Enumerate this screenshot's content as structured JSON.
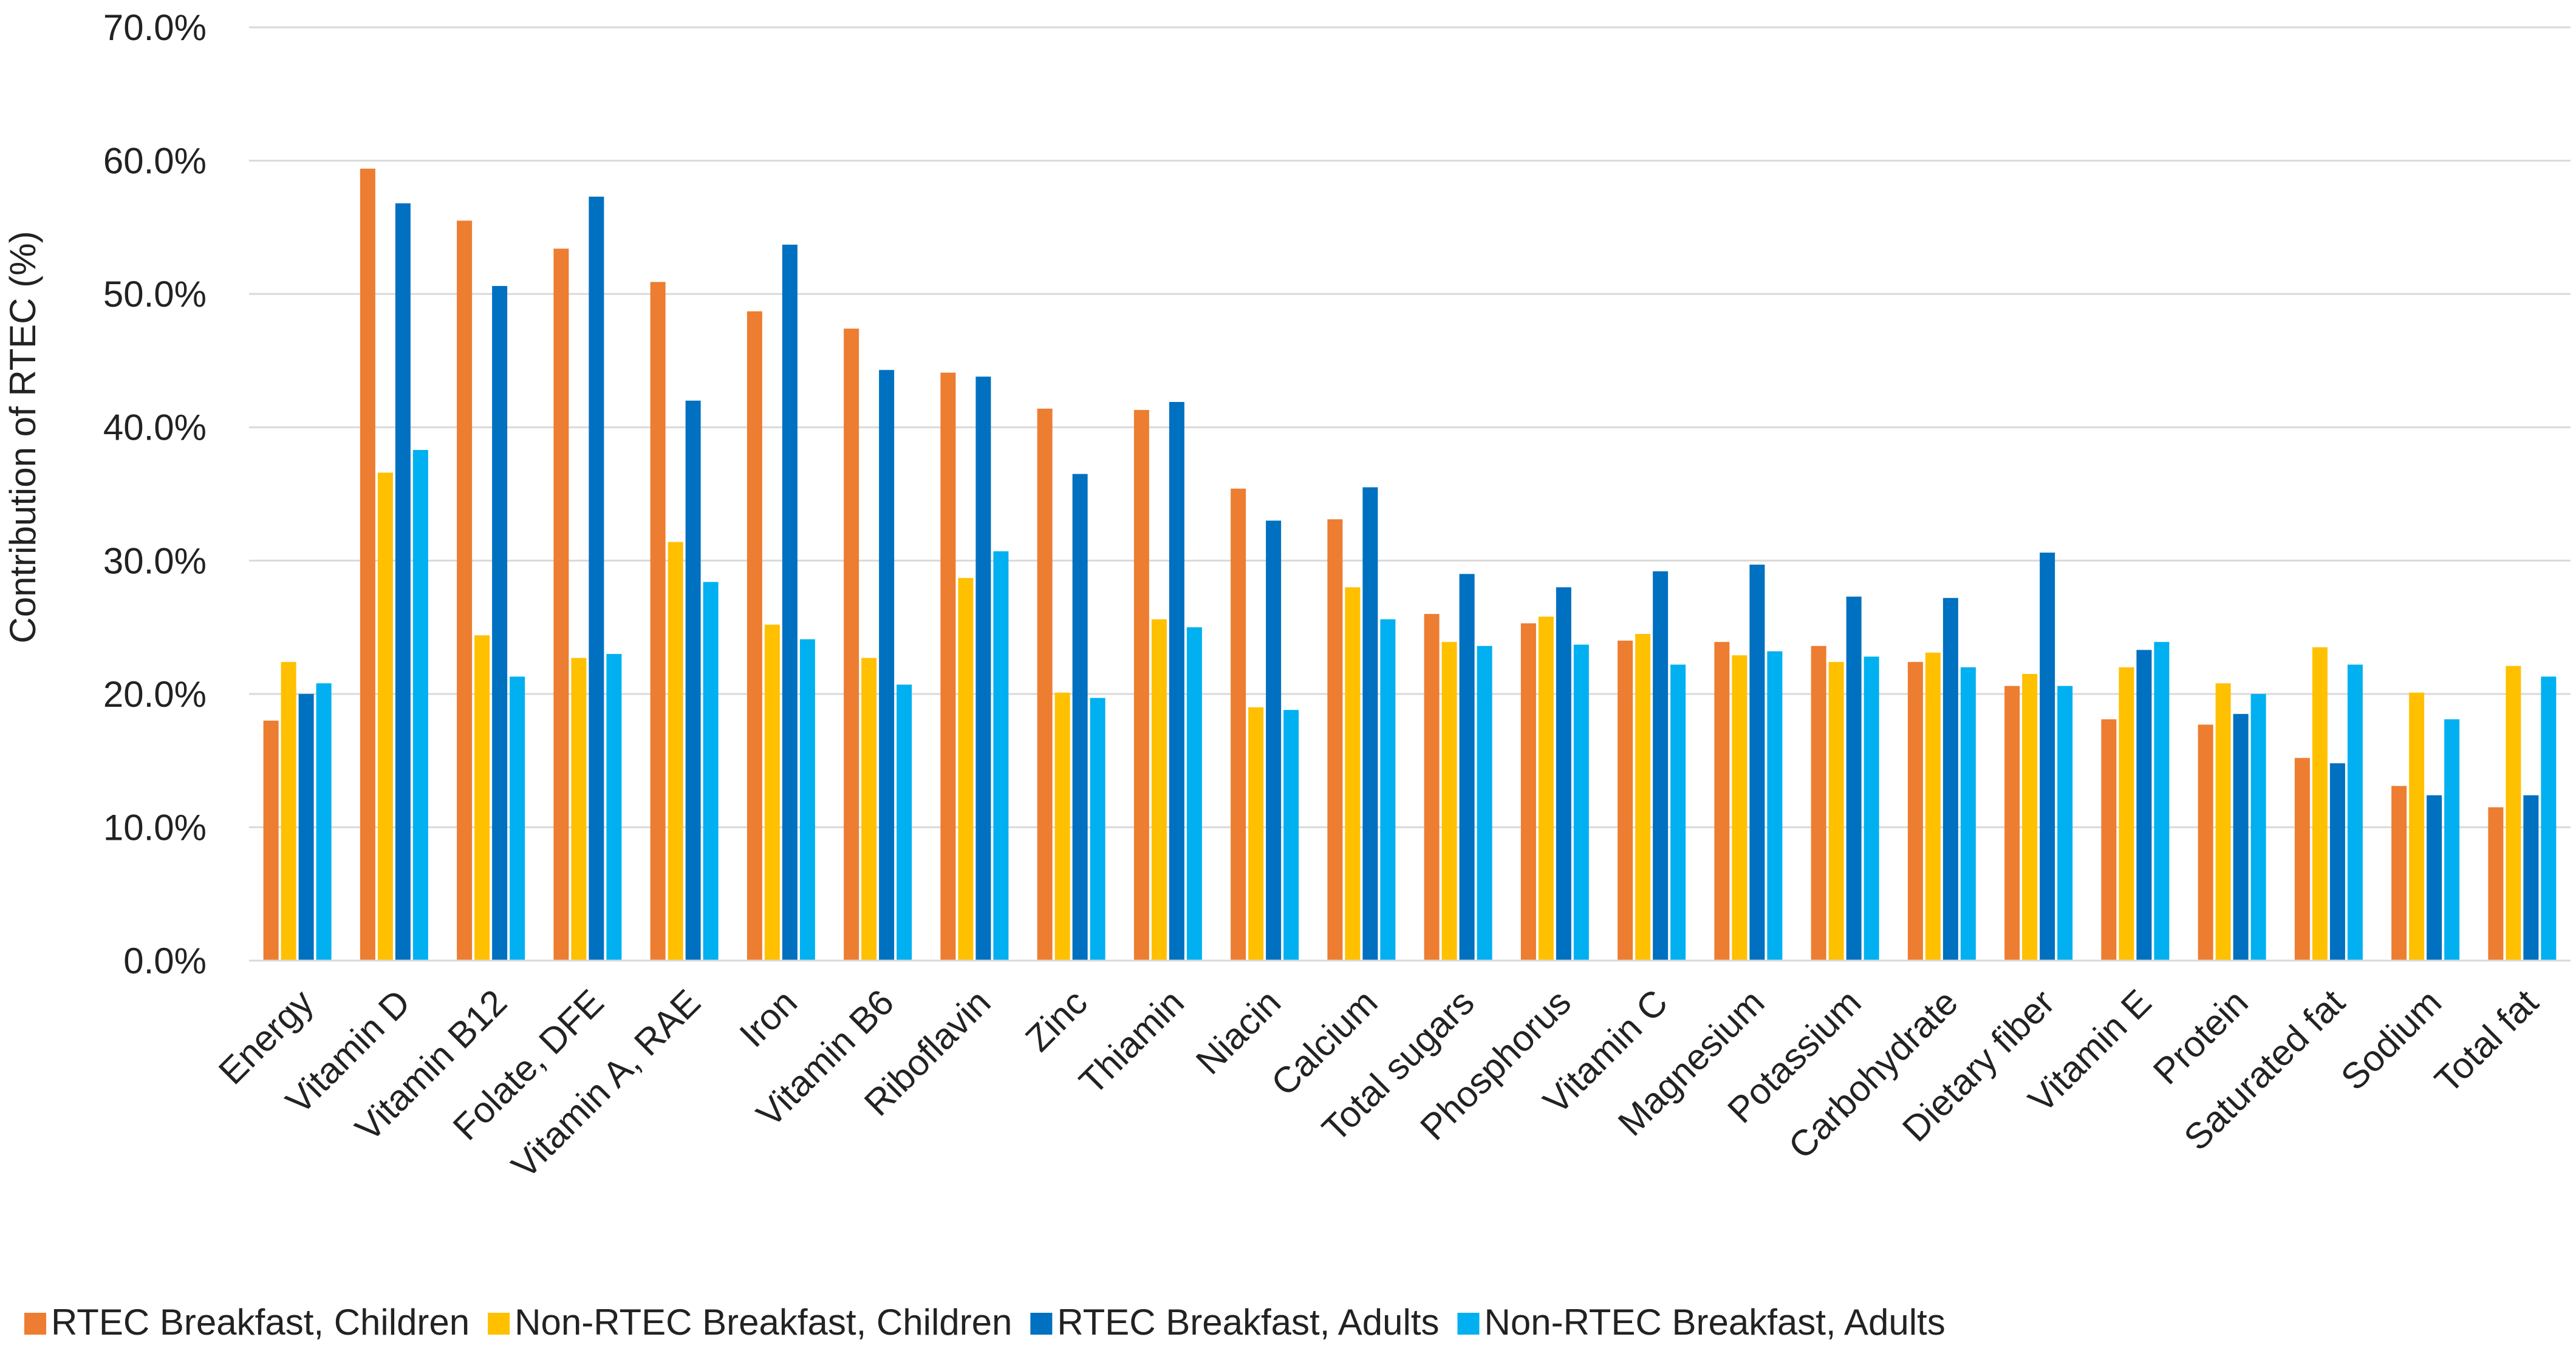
{
  "chart_data": {
    "type": "bar",
    "title": "",
    "xlabel": "",
    "ylabel": "Contribution of RTEC (%)",
    "ylim": [
      0,
      70
    ],
    "ytick_values": [
      0,
      10,
      20,
      30,
      40,
      50,
      60,
      70
    ],
    "ytick_labels": [
      "0.0%",
      "10.0%",
      "20.0%",
      "30.0%",
      "40.0%",
      "50.0%",
      "60.0%",
      "70.0%"
    ],
    "grid": true,
    "legend_position": "bottom",
    "categories": [
      "Energy",
      "Vitamin D",
      "Vitamin B12",
      "Folate, DFE",
      "Vitamin A, RAE",
      "Iron",
      "Vitamin B6",
      "Riboflavin",
      "Zinc",
      "Thiamin",
      "Niacin",
      "Calcium",
      "Total sugars",
      "Phosphorus",
      "Vitamin C",
      "Magnesium",
      "Potassium",
      "Carbohydrate",
      "Dietary fiber",
      "Vitamin E",
      "Protein",
      "Saturated fat",
      "Sodium",
      "Total fat"
    ],
    "series": [
      {
        "name": "RTEC Breakfast, Children",
        "color": "#ED7D31",
        "values": [
          18.0,
          59.4,
          55.5,
          53.4,
          50.9,
          48.7,
          47.4,
          44.1,
          41.4,
          41.3,
          35.4,
          33.1,
          26.0,
          25.3,
          24.0,
          23.9,
          23.6,
          22.4,
          20.6,
          18.1,
          17.7,
          15.2,
          13.1,
          11.5
        ]
      },
      {
        "name": "Non-RTEC Breakfast, Children",
        "color": "#FFC000",
        "values": [
          22.4,
          36.6,
          24.4,
          22.7,
          31.4,
          25.2,
          22.7,
          28.7,
          20.1,
          25.6,
          19.0,
          28.0,
          23.9,
          25.8,
          24.5,
          22.9,
          22.4,
          23.1,
          21.5,
          22.0,
          20.8,
          23.5,
          20.1,
          22.1
        ]
      },
      {
        "name": "RTEC Breakfast, Adults",
        "color": "#0070C0",
        "values": [
          20.0,
          56.8,
          50.6,
          57.3,
          42.0,
          53.7,
          44.3,
          43.8,
          36.5,
          41.9,
          33.0,
          35.5,
          29.0,
          28.0,
          29.2,
          29.7,
          27.3,
          27.2,
          30.6,
          23.3,
          18.5,
          14.8,
          12.4,
          12.4
        ]
      },
      {
        "name": "Non-RTEC Breakfast, Adults",
        "color": "#00B0F0",
        "values": [
          20.8,
          38.3,
          21.3,
          23.0,
          28.4,
          24.1,
          20.7,
          30.7,
          19.7,
          25.0,
          18.8,
          25.6,
          23.6,
          23.7,
          22.2,
          23.2,
          22.8,
          22.0,
          20.6,
          23.9,
          20.0,
          22.2,
          18.1,
          21.3
        ]
      }
    ]
  }
}
